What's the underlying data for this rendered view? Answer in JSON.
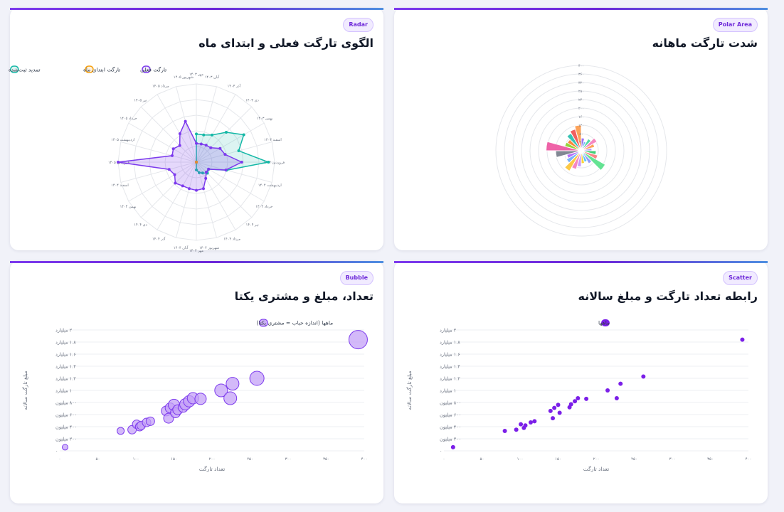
{
  "cards": [
    {
      "badge": "Radar",
      "title": "الگوی تارگت فعلی و ابتدای ماه"
    },
    {
      "badge": "Polar Area",
      "title": "شدت تارگت ماهانه"
    },
    {
      "badge": "Bubble",
      "title": "تعداد، مبلغ و مشتری یکتا"
    },
    {
      "badge": "Scatter",
      "title": "رابطه تعداد تارگت و مبلغ سالانه"
    }
  ],
  "colors": {
    "accent": "#7c3aed",
    "current": "#7c3aed",
    "start_of_month": "#f59e0b",
    "extended": "#14b8a6",
    "bubble_fill": "#c4a1f7",
    "scatter_point": "#7b1fe8"
  },
  "chart_data": [
    {
      "type": "radar",
      "categories": [
        "مهر ۱۴۰۳",
        "آبان ۱۴۰۳",
        "آذر ۱۴۰۳",
        "دی ۱۴۰۳",
        "بهمن ۱۴۰۳",
        "اسفند ۱۴۰۳",
        "فروردین ۱۴۰۴",
        "اردیبهشت ۱۴۰۴",
        "خرداد ۱۴۰۴",
        "تیر ۱۴۰۴",
        "مرداد ۱۴۰۴",
        "شهریور ۱۴۰۴",
        "مهر ۱۴۰۴",
        "آبان ۱۴۰۴",
        "آذر ۱۴۰۴",
        "دی ۱۴۰۴",
        "بهمن ۱۴۰۴",
        "اسفند ۱۴۰۴",
        "فروردین ۱۴۰۵",
        "اردیبهشت ۱۴۰۵",
        "خرداد ۱۴۰۵",
        "تیر ۱۴۰۵",
        "مرداد ۱۴۰۵",
        "شهریور ۱۴۰۵"
      ],
      "series": [
        {
          "name": "تارگت فعلی",
          "values": [
            24,
            24,
            25,
            26,
            35,
            38,
            58,
            39,
            18,
            18,
            24,
            35,
            36,
            35,
            35,
            38,
            32,
            36,
            100,
            32,
            34,
            30,
            42,
            54
          ]
        },
        {
          "name": "تارگت ابتدای ماه",
          "values": [
            0,
            0,
            0,
            0,
            0,
            0,
            0,
            0,
            0,
            0,
            0,
            0,
            0,
            0,
            0,
            0,
            0,
            0,
            0,
            0,
            0,
            0,
            0,
            0
          ]
        },
        {
          "name": "تمدید ثبت‌شده",
          "values": [
            36,
            36,
            40,
            54,
            70,
            56,
            92,
            40,
            18,
            20,
            16,
            14,
            10,
            0,
            0,
            0,
            0,
            0,
            0,
            0,
            0,
            0,
            0,
            0
          ]
        }
      ],
      "legend": "top"
    },
    {
      "type": "polar_area",
      "radial_ticks": [
        "۴۰",
        "۸۰",
        "۱۲۰",
        "۱۶۰",
        "۲۰۰",
        "۲۴۰",
        "۲۸۰",
        "۳۲۰",
        "۳۶۰",
        "۴۰۰"
      ],
      "values": [
        60,
        45,
        65,
        85,
        65,
        50,
        70,
        80,
        130,
        70,
        55,
        60,
        75,
        90,
        110,
        80,
        70,
        120,
        165,
        80,
        75,
        95,
        105,
        120
      ],
      "colors": [
        "#8b5cf6",
        "#60a5fa",
        "#34d399",
        "#f472b6",
        "#fb923c",
        "#a78bfa",
        "#22c55e",
        "#f87171",
        "#4ade80",
        "#818cf8",
        "#38bdf8",
        "#facc15",
        "#c084fc",
        "#f472b6",
        "#fbbf24",
        "#60a5fa",
        "#a855f7",
        "#6b7280",
        "#ec4899",
        "#84cc16",
        "#f97316",
        "#14b8a6",
        "#ef4444",
        "#fb923c"
      ]
    },
    {
      "type": "bubble",
      "legend": "ماهها (اندازه حباب = مشتری یکتا)",
      "xlabel": "تعداد تارگت",
      "ylabel": "مبلغ تارگت سالانه",
      "x_ticks": [
        "۰",
        "۵۰",
        "۱۰۰",
        "۱۵۰",
        "۲۰۰",
        "۲۵۰",
        "۳۰۰",
        "۳۵۰",
        "۴۰۰"
      ],
      "y_ticks": [
        "۰",
        "۲۰۰ میلیون",
        "۴۰۰ میلیون",
        "۶۰۰ میلیون",
        "۸۰۰ میلیون",
        "۱ میلیارد",
        "۱.۲ میلیارد",
        "۱.۴ میلیارد",
        "۱.۶ میلیارد",
        "۱.۸ میلیارد",
        "۲ میلیارد"
      ],
      "xlim": [
        0,
        400
      ],
      "ylim": [
        0,
        2000000000
      ],
      "points": [
        {
          "x": 7,
          "y": 60000000,
          "r": 4
        },
        {
          "x": 80,
          "y": 330000000,
          "r": 5
        },
        {
          "x": 95,
          "y": 350000000,
          "r": 6
        },
        {
          "x": 101,
          "y": 440000000,
          "r": 6
        },
        {
          "x": 105,
          "y": 400000000,
          "r": 6
        },
        {
          "x": 107,
          "y": 420000000,
          "r": 6
        },
        {
          "x": 114,
          "y": 470000000,
          "r": 6
        },
        {
          "x": 119,
          "y": 490000000,
          "r": 6
        },
        {
          "x": 140,
          "y": 660000000,
          "r": 7
        },
        {
          "x": 143,
          "y": 540000000,
          "r": 7
        },
        {
          "x": 145,
          "y": 710000000,
          "r": 7
        },
        {
          "x": 150,
          "y": 760000000,
          "r": 8
        },
        {
          "x": 152,
          "y": 630000000,
          "r": 7
        },
        {
          "x": 155,
          "y": 680000000,
          "r": 7
        },
        {
          "x": 162,
          "y": 720000000,
          "r": 7
        },
        {
          "x": 165,
          "y": 770000000,
          "r": 8
        },
        {
          "x": 170,
          "y": 820000000,
          "r": 8
        },
        {
          "x": 175,
          "y": 870000000,
          "r": 8
        },
        {
          "x": 185,
          "y": 860000000,
          "r": 8
        },
        {
          "x": 212,
          "y": 1000000000,
          "r": 9
        },
        {
          "x": 224,
          "y": 870000000,
          "r": 9
        },
        {
          "x": 227,
          "y": 1110000000,
          "r": 9
        },
        {
          "x": 259,
          "y": 1200000000,
          "r": 10
        },
        {
          "x": 392,
          "y": 1840000000,
          "r": 13
        }
      ]
    },
    {
      "type": "scatter",
      "legend": "ماهها",
      "xlabel": "تعداد تارگت",
      "ylabel": "مبلغ تارگت سالانه",
      "x_ticks": [
        "۰",
        "۵۰",
        "۱۰۰",
        "۱۵۰",
        "۲۰۰",
        "۲۵۰",
        "۳۰۰",
        "۳۵۰",
        "۴۰۰"
      ],
      "y_ticks": [
        "۰",
        "۲۰۰ میلیون",
        "۴۰۰ میلیون",
        "۶۰۰ میلیون",
        "۸۰۰ میلیون",
        "۱ میلیارد",
        "۱.۲ میلیارد",
        "۱.۴ میلیارد",
        "۱.۶ میلیارد",
        "۱.۸ میلیارد",
        "۲ میلیارد"
      ],
      "xlim": [
        0,
        400
      ],
      "ylim": [
        0,
        2000000000
      ],
      "points": [
        {
          "x": 12,
          "y": 60000000
        },
        {
          "x": 80,
          "y": 330000000
        },
        {
          "x": 95,
          "y": 350000000
        },
        {
          "x": 101,
          "y": 440000000
        },
        {
          "x": 105,
          "y": 380000000
        },
        {
          "x": 107,
          "y": 420000000
        },
        {
          "x": 114,
          "y": 470000000
        },
        {
          "x": 119,
          "y": 490000000
        },
        {
          "x": 140,
          "y": 660000000
        },
        {
          "x": 143,
          "y": 540000000
        },
        {
          "x": 145,
          "y": 710000000
        },
        {
          "x": 150,
          "y": 760000000
        },
        {
          "x": 152,
          "y": 630000000
        },
        {
          "x": 165,
          "y": 720000000
        },
        {
          "x": 167,
          "y": 770000000
        },
        {
          "x": 172,
          "y": 820000000
        },
        {
          "x": 176,
          "y": 870000000
        },
        {
          "x": 187,
          "y": 860000000
        },
        {
          "x": 215,
          "y": 1000000000
        },
        {
          "x": 227,
          "y": 870000000
        },
        {
          "x": 232,
          "y": 1110000000
        },
        {
          "x": 262,
          "y": 1230000000
        },
        {
          "x": 392,
          "y": 1840000000
        }
      ]
    }
  ]
}
